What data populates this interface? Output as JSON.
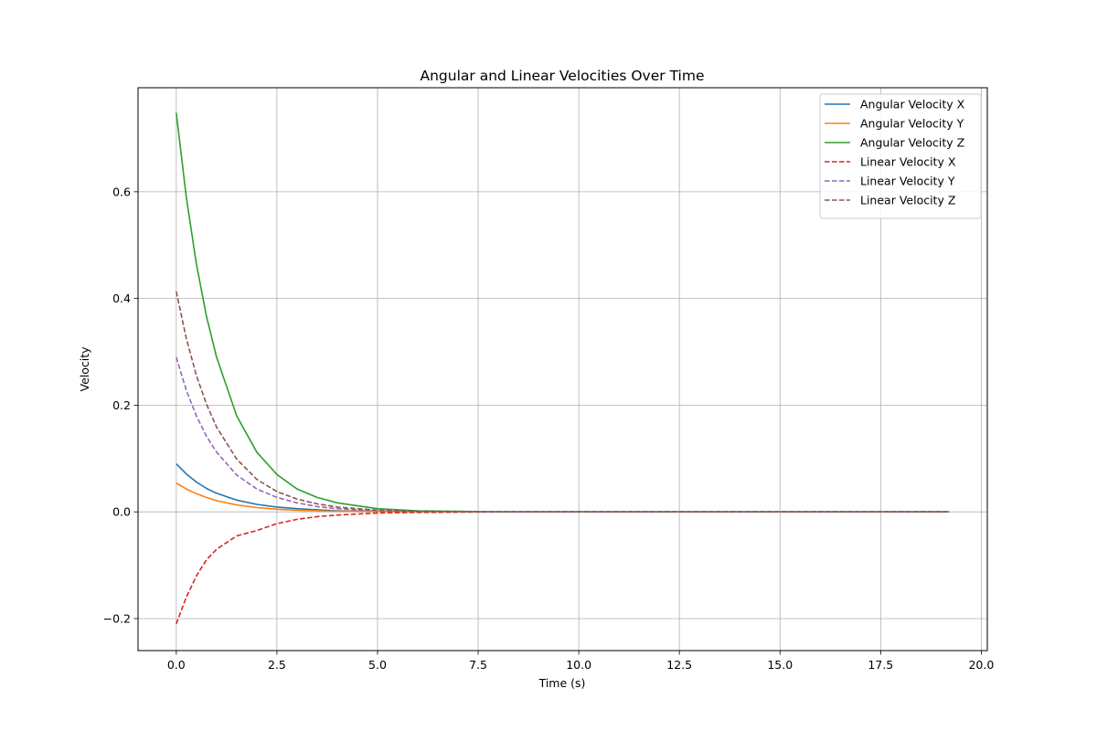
{
  "chart_data": {
    "type": "line",
    "title": "Angular and Linear Velocities Over Time",
    "xlabel": "Time (s)",
    "ylabel": "Velocity",
    "xlim": [
      -0.95,
      20.15
    ],
    "ylim": [
      -0.26,
      0.795
    ],
    "grid": true,
    "legend_position": "top-right",
    "x_ticks": [
      0.0,
      2.5,
      5.0,
      7.5,
      10.0,
      12.5,
      15.0,
      17.5,
      20.0
    ],
    "x_tick_labels": [
      "0.0",
      "2.5",
      "5.0",
      "7.5",
      "10.0",
      "12.5",
      "15.0",
      "17.5",
      "20.0"
    ],
    "y_ticks": [
      -0.2,
      0.0,
      0.2,
      0.4,
      0.6
    ],
    "y_tick_labels": [
      "−0.2",
      "0.0",
      "0.2",
      "0.4",
      "0.6"
    ],
    "x": [
      0.0,
      0.25,
      0.5,
      0.75,
      1.0,
      1.5,
      2.0,
      2.5,
      3.0,
      3.5,
      4.0,
      5.0,
      6.0,
      8.0,
      10.0,
      12.5,
      15.0,
      17.5,
      19.2
    ],
    "series": [
      {
        "name": "Angular Velocity X",
        "color": "#1f77b4",
        "dash": "solid",
        "values": [
          0.09,
          0.071,
          0.056,
          0.044,
          0.035,
          0.022,
          0.014,
          0.009,
          0.006,
          0.004,
          0.002,
          0.001,
          0.0,
          0.0,
          0.0,
          0.0,
          0.0,
          0.0,
          0.0
        ]
      },
      {
        "name": "Angular Velocity Y",
        "color": "#ff7f0e",
        "dash": "solid",
        "values": [
          0.054,
          0.043,
          0.034,
          0.027,
          0.021,
          0.013,
          0.008,
          0.005,
          0.003,
          0.002,
          0.001,
          0.001,
          0.0,
          0.0,
          0.0,
          0.0,
          0.0,
          0.0,
          0.0
        ]
      },
      {
        "name": "Angular Velocity Z",
        "color": "#2ca02c",
        "dash": "solid",
        "values": [
          0.748,
          0.59,
          0.465,
          0.367,
          0.29,
          0.18,
          0.112,
          0.07,
          0.043,
          0.027,
          0.017,
          0.006,
          0.002,
          0.0,
          0.0,
          0.0,
          0.0,
          0.0,
          0.0
        ]
      },
      {
        "name": "Linear Velocity X",
        "color": "#d62728",
        "dash": "dashed",
        "values": [
          -0.21,
          -0.16,
          -0.12,
          -0.09,
          -0.07,
          -0.045,
          -0.035,
          -0.022,
          -0.014,
          -0.009,
          -0.006,
          -0.002,
          -0.001,
          0.0,
          0.0,
          0.0,
          0.0,
          0.0,
          0.0
        ]
      },
      {
        "name": "Linear Velocity Y",
        "color": "#9467bd",
        "dash": "dashed",
        "values": [
          0.29,
          0.228,
          0.18,
          0.142,
          0.112,
          0.069,
          0.043,
          0.027,
          0.017,
          0.01,
          0.006,
          0.002,
          0.001,
          0.0,
          0.0,
          0.0,
          0.0,
          0.0,
          0.0
        ]
      },
      {
        "name": "Linear Velocity Z",
        "color": "#8c564b",
        "dash": "dashed",
        "values": [
          0.413,
          0.325,
          0.256,
          0.202,
          0.159,
          0.099,
          0.061,
          0.038,
          0.024,
          0.015,
          0.009,
          0.003,
          0.001,
          0.0,
          0.0,
          0.0,
          0.0,
          0.0,
          0.0
        ]
      }
    ]
  }
}
